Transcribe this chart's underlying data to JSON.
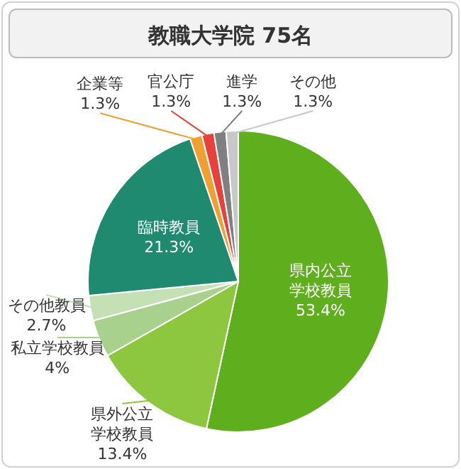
{
  "chart_data": {
    "type": "pie",
    "title": "教職大学院 75名",
    "categories": [
      "県内公立学校教員",
      "県外公立学校教員",
      "私立学校教員",
      "その他教員",
      "臨時教員",
      "企業等",
      "官公庁",
      "進学",
      "その他"
    ],
    "values": [
      53.4,
      13.4,
      4,
      2.7,
      21.3,
      1.3,
      1.3,
      1.3,
      1.3
    ],
    "colors": [
      "#5fae1e",
      "#8dc63f",
      "#a9d18e",
      "#c5e0b4",
      "#1f8a70",
      "#f0a030",
      "#e8403a",
      "#808080",
      "#c8c8c8"
    ],
    "value_labels": [
      "53.4%",
      "13.4%",
      "4%",
      "2.7%",
      "21.3%",
      "1.3%",
      "1.3%",
      "1.3%",
      "1.3%"
    ],
    "legend": false
  }
}
